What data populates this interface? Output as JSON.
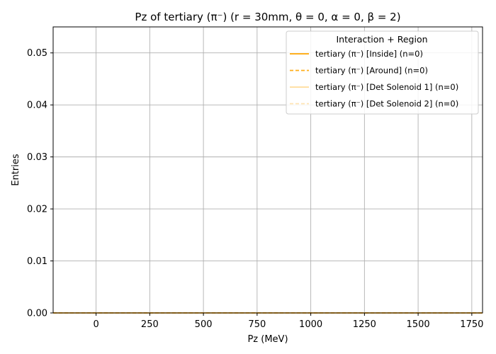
{
  "chart_data": {
    "type": "line",
    "title": "Pz of tertiary (π⁻) (r = 30mm, θ = 0, α = 0, β = 2)",
    "xlabel": "Pz (MeV)",
    "ylabel": "Entries",
    "xlim": [
      -200,
      1800
    ],
    "ylim": [
      0,
      0.055
    ],
    "xticks": [
      0,
      250,
      500,
      750,
      1000,
      1250,
      1500,
      1750
    ],
    "yticks": [
      0.0,
      0.01,
      0.02,
      0.03,
      0.04,
      0.05
    ],
    "xtick_labels": [
      "0",
      "250",
      "500",
      "750",
      "1000",
      "1250",
      "1500",
      "1750"
    ],
    "ytick_labels": [
      "0.00",
      "0.01",
      "0.02",
      "0.03",
      "0.04",
      "0.05"
    ],
    "grid": true,
    "legend": {
      "title": "Interaction + Region",
      "placement": "top-right"
    },
    "series": [
      {
        "name": "tertiary (π⁻) [Inside] (n=0)",
        "color": "#FFA500",
        "dash": "solid",
        "opacity": 1.0,
        "x": [
          -200,
          1800
        ],
        "y": [
          0,
          0
        ]
      },
      {
        "name": "tertiary (π⁻) [Around] (n=0)",
        "color": "#FFA500",
        "dash": "dashed",
        "opacity": 0.9,
        "x": [
          -200,
          1800
        ],
        "y": [
          0,
          0
        ]
      },
      {
        "name": "tertiary (π⁻) [Det Solenoid 1] (n=0)",
        "color": "#FFA500",
        "dash": "solid",
        "opacity": 0.4,
        "x": [
          -200,
          1800
        ],
        "y": [
          0,
          0
        ]
      },
      {
        "name": "tertiary (π⁻) [Det Solenoid 2] (n=0)",
        "color": "#FFA500",
        "dash": "dashed",
        "opacity": 0.3,
        "x": [
          -200,
          1800
        ],
        "y": [
          0,
          0
        ]
      }
    ]
  }
}
